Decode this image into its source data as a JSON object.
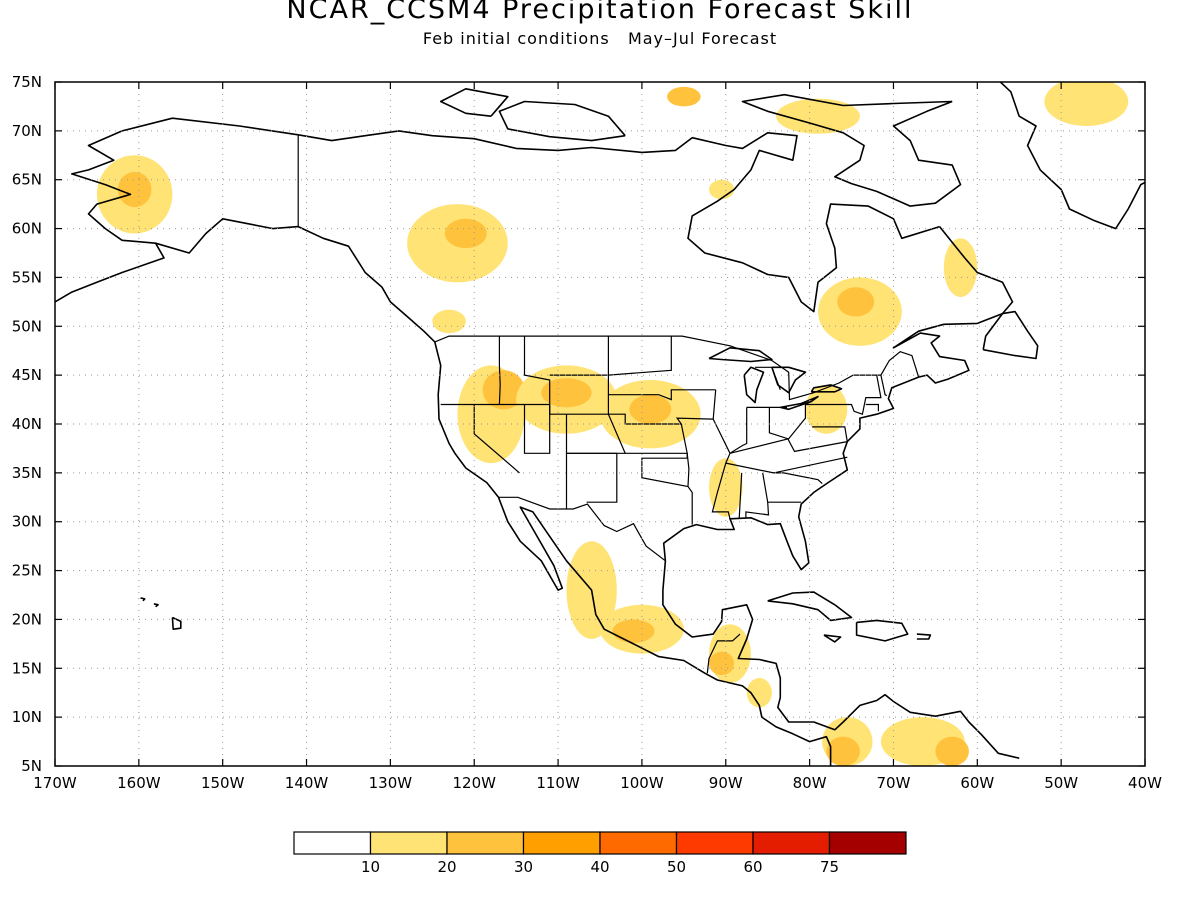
{
  "title": "NCAR_CCSM4 Precipitation Forecast Skill",
  "subtitle": "Feb initial conditions   May–Jul Forecast",
  "map": {
    "projection": "cylindrical-equidistant",
    "lon_range": [
      -170,
      -40
    ],
    "lat_range": [
      5,
      75
    ],
    "grid": "dotted",
    "lat_ticks": [
      {
        "value": 75,
        "label": "75N"
      },
      {
        "value": 70,
        "label": "70N"
      },
      {
        "value": 65,
        "label": "65N"
      },
      {
        "value": 60,
        "label": "60N"
      },
      {
        "value": 55,
        "label": "55N"
      },
      {
        "value": 50,
        "label": "50N"
      },
      {
        "value": 45,
        "label": "45N"
      },
      {
        "value": 40,
        "label": "40N"
      },
      {
        "value": 35,
        "label": "35N"
      },
      {
        "value": 30,
        "label": "30N"
      },
      {
        "value": 25,
        "label": "25N"
      },
      {
        "value": 20,
        "label": "20N"
      },
      {
        "value": 15,
        "label": "15N"
      },
      {
        "value": 10,
        "label": "10N"
      },
      {
        "value": 5,
        "label": "5N"
      }
    ],
    "lon_ticks": [
      {
        "value": -170,
        "label": "170W"
      },
      {
        "value": -160,
        "label": "160W"
      },
      {
        "value": -150,
        "label": "150W"
      },
      {
        "value": -140,
        "label": "140W"
      },
      {
        "value": -130,
        "label": "130W"
      },
      {
        "value": -120,
        "label": "120W"
      },
      {
        "value": -110,
        "label": "110W"
      },
      {
        "value": -100,
        "label": "100W"
      },
      {
        "value": -90,
        "label": "90W"
      },
      {
        "value": -80,
        "label": "80W"
      },
      {
        "value": -70,
        "label": "70W"
      },
      {
        "value": -60,
        "label": "60W"
      },
      {
        "value": -50,
        "label": "50W"
      },
      {
        "value": -40,
        "label": "40W"
      }
    ],
    "skill_regions": [
      {
        "area": "Alaska west",
        "lon": -160.5,
        "lat": 63.5,
        "rx": 4.5,
        "ry": 4,
        "level": 1
      },
      {
        "area": "Alaska west",
        "lon": -160.5,
        "lat": 64,
        "rx": 2,
        "ry": 1.8,
        "level": 2
      },
      {
        "area": "NW Canada",
        "lon": -122,
        "lat": 58.5,
        "rx": 6,
        "ry": 4,
        "level": 1
      },
      {
        "area": "NW Canada",
        "lon": -121,
        "lat": 59.5,
        "rx": 2.5,
        "ry": 1.5,
        "level": 2
      },
      {
        "area": "Arctic islands",
        "lon": -95,
        "lat": 73.5,
        "rx": 2,
        "ry": 1,
        "level": 2
      },
      {
        "area": "Arctic islands",
        "lon": -79,
        "lat": 71.5,
        "rx": 5,
        "ry": 1.8,
        "level": 1
      },
      {
        "area": "Greenland",
        "lon": -47,
        "lat": 73,
        "rx": 5,
        "ry": 2.5,
        "level": 1
      },
      {
        "area": "Hudson Bay",
        "lon": -90.5,
        "lat": 64,
        "rx": 1.5,
        "ry": 1,
        "level": 1
      },
      {
        "area": "Quebec",
        "lon": -74,
        "lat": 51.5,
        "rx": 5,
        "ry": 3.5,
        "level": 1
      },
      {
        "area": "Quebec",
        "lon": -74.5,
        "lat": 52.5,
        "rx": 2.2,
        "ry": 1.5,
        "level": 2
      },
      {
        "area": "Labrador",
        "lon": -62,
        "lat": 56,
        "rx": 2,
        "ry": 3,
        "level": 1
      },
      {
        "area": "US West",
        "lon": -118,
        "lat": 41,
        "rx": 4,
        "ry": 5,
        "level": 1
      },
      {
        "area": "US West",
        "lon": -116.5,
        "lat": 43.5,
        "rx": 2.5,
        "ry": 2,
        "level": 2
      },
      {
        "area": "US Rockies",
        "lon": -109,
        "lat": 42.5,
        "rx": 6,
        "ry": 3.5,
        "level": 1
      },
      {
        "area": "US Rockies",
        "lon": -109,
        "lat": 43.2,
        "rx": 3,
        "ry": 1.5,
        "level": 2
      },
      {
        "area": "US Plains",
        "lon": -99,
        "lat": 41,
        "rx": 6,
        "ry": 3.5,
        "level": 1
      },
      {
        "area": "US Plains",
        "lon": -99,
        "lat": 41.5,
        "rx": 2.5,
        "ry": 1.5,
        "level": 2
      },
      {
        "area": "Pacific NW",
        "lon": -123,
        "lat": 50.5,
        "rx": 2,
        "ry": 1.2,
        "level": 1
      },
      {
        "area": "Mississippi",
        "lon": -90,
        "lat": 33.5,
        "rx": 2,
        "ry": 3,
        "level": 1
      },
      {
        "area": "US East",
        "lon": -78,
        "lat": 41.5,
        "rx": 2.5,
        "ry": 2.5,
        "level": 1
      },
      {
        "area": "Mexico west",
        "lon": -106,
        "lat": 23,
        "rx": 3,
        "ry": 5,
        "level": 1
      },
      {
        "area": "Mexico south",
        "lon": -100,
        "lat": 19,
        "rx": 5,
        "ry": 2.5,
        "level": 1
      },
      {
        "area": "Mexico south",
        "lon": -101,
        "lat": 18.8,
        "rx": 2.5,
        "ry": 1.2,
        "level": 2
      },
      {
        "area": "Central America",
        "lon": -89.5,
        "lat": 16.5,
        "rx": 2.5,
        "ry": 3,
        "level": 1
      },
      {
        "area": "Central America",
        "lon": -90.5,
        "lat": 15.5,
        "rx": 1.5,
        "ry": 1.2,
        "level": 2
      },
      {
        "area": "Nicaragua",
        "lon": -86,
        "lat": 12.5,
        "rx": 1.5,
        "ry": 1.5,
        "level": 1
      },
      {
        "area": "Colombia",
        "lon": -75.5,
        "lat": 7.5,
        "rx": 3,
        "ry": 2.5,
        "level": 1
      },
      {
        "area": "Colombia",
        "lon": -76,
        "lat": 6.5,
        "rx": 2,
        "ry": 1.5,
        "level": 2
      },
      {
        "area": "Venezuela",
        "lon": -66.5,
        "lat": 7.5,
        "rx": 5,
        "ry": 2.5,
        "level": 1
      },
      {
        "area": "Venezuela",
        "lon": -63,
        "lat": 6.5,
        "rx": 2,
        "ry": 1.5,
        "level": 2
      }
    ]
  },
  "legend": {
    "colors": [
      "#ffffff",
      "#ffe375",
      "#ffc23d",
      "#ff9f00",
      "#ff6a00",
      "#ff3a00",
      "#e41c00",
      "#a50000"
    ],
    "labels": [
      "10",
      "20",
      "30",
      "40",
      "50",
      "60",
      "75"
    ]
  }
}
